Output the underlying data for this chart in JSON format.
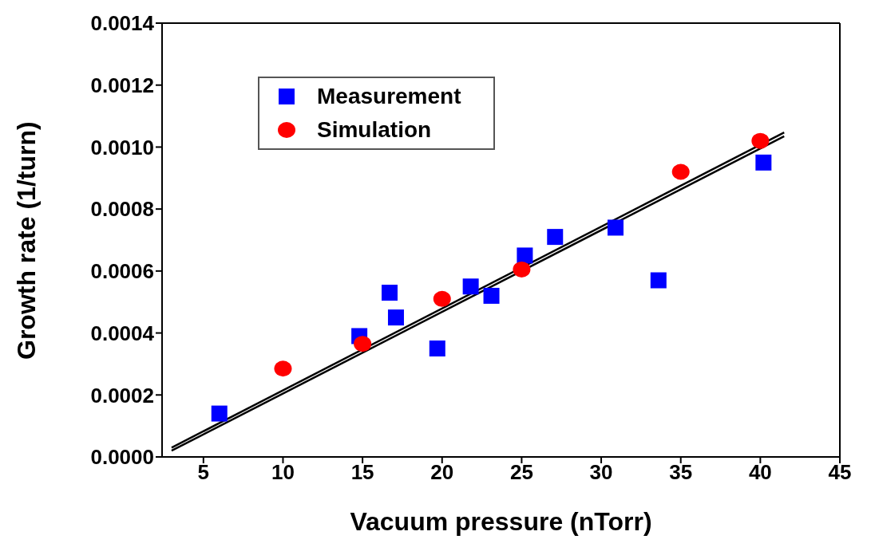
{
  "chart_data": {
    "type": "scatter",
    "xlabel": "Vacuum pressure (nTorr)",
    "ylabel": "Growth rate (1/turn)",
    "xlim": [
      2.4,
      45
    ],
    "xticks": [
      5,
      10,
      15,
      20,
      25,
      30,
      35,
      40,
      45
    ],
    "ylim": [
      0,
      0.0014
    ],
    "yticks": [
      {
        "value": 0,
        "label": "0.0000"
      },
      {
        "value": 0.0002,
        "label": "0.0002"
      },
      {
        "value": 0.0004,
        "label": "0.0004"
      },
      {
        "value": 0.0006,
        "label": "0.0006"
      },
      {
        "value": 0.0008,
        "label": "0.0008"
      },
      {
        "value": 0.001,
        "label": "0.0010"
      },
      {
        "value": 0.0012,
        "label": "0.0012"
      },
      {
        "value": 0.0014,
        "label": "0.0014"
      }
    ],
    "legend": "top left",
    "series": [
      {
        "name": "Measurement",
        "color": "#0000ff",
        "marker": "square",
        "x": [
          6,
          14.8,
          16.7,
          17.1,
          19.7,
          21.8,
          23.1,
          25.2,
          27.1,
          30.9,
          33.6,
          40.2
        ],
        "values": [
          0.00014,
          0.00039,
          0.00053,
          0.00045,
          0.00035,
          0.00055,
          0.00052,
          0.00065,
          0.00071,
          0.00074,
          0.00057,
          0.00095
        ]
      },
      {
        "name": "Simulation",
        "color": "#ff0000",
        "marker": "circle",
        "x": [
          10,
          15,
          20,
          25,
          35,
          40
        ],
        "values": [
          0.000285,
          0.000365,
          0.00051,
          0.000605,
          0.00092,
          0.00102
        ]
      },
      {
        "type": "line",
        "color": "#000000",
        "marker": "none",
        "x": [
          3,
          41.5
        ],
        "values": [
          3e-05,
          0.001047
        ]
      },
      {
        "type": "line",
        "color": "#000000",
        "marker": "none",
        "x": [
          3,
          41.5
        ],
        "values": [
          2e-05,
          0.001035
        ]
      }
    ]
  }
}
